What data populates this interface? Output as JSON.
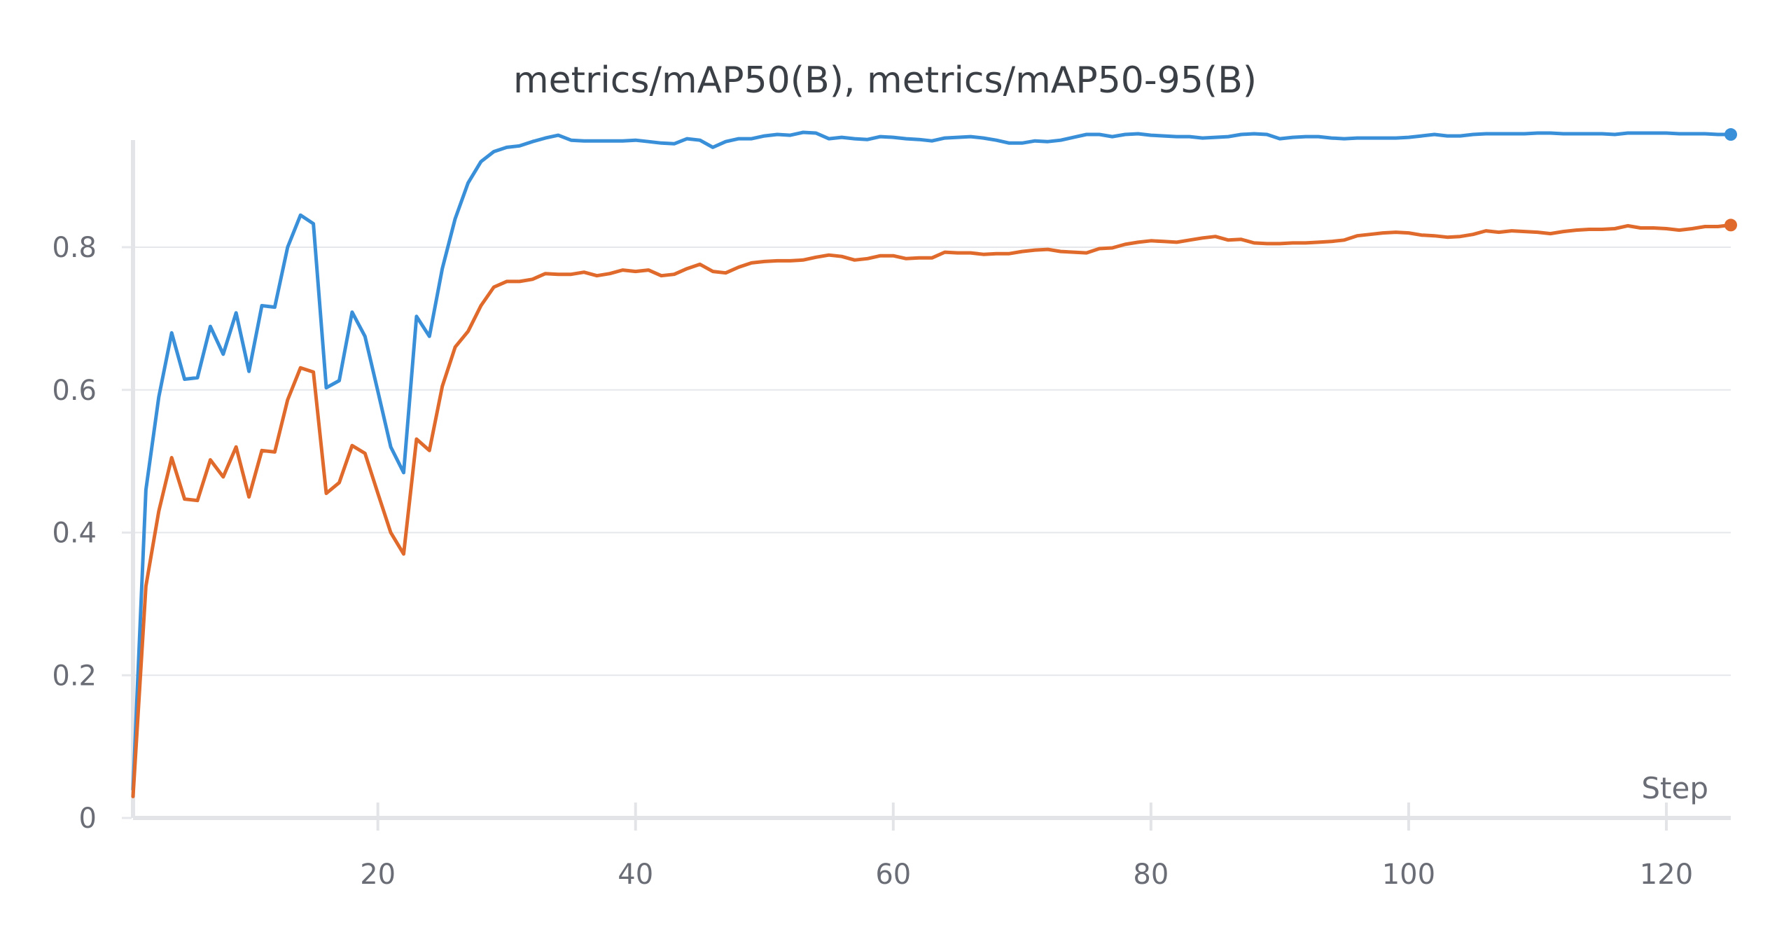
{
  "chart_data": {
    "type": "line",
    "title": "metrics/mAP50(B), metrics/mAP50-95(B)",
    "xlabel": "Step",
    "ylabel": "",
    "xlim": [
      1,
      125
    ],
    "ylim": [
      0,
      0.96
    ],
    "x_ticks": [
      20,
      40,
      60,
      80,
      100,
      120
    ],
    "y_ticks": [
      0,
      0.2,
      0.4,
      0.6,
      0.8
    ],
    "y_tick_labels": [
      "0",
      "0.2",
      "0.4",
      "0.6",
      "0.8"
    ],
    "x_tick_labels": [
      "20",
      "40",
      "60",
      "80",
      "100",
      "120"
    ],
    "grid": true,
    "legend": "none",
    "series": [
      {
        "color": "#3a8fd9",
        "x": [
          1,
          2,
          3,
          4,
          5,
          6,
          7,
          8,
          9,
          10,
          11,
          12,
          13,
          14,
          15,
          16,
          17,
          18,
          19,
          20,
          21,
          22,
          23,
          24,
          25,
          26,
          27,
          28,
          29,
          30,
          31,
          32,
          33,
          34,
          35,
          36,
          37,
          38,
          39,
          40,
          41,
          42,
          43,
          44,
          45,
          46,
          47,
          48,
          49,
          50,
          51,
          52,
          53,
          54,
          55,
          56,
          57,
          58,
          59,
          60,
          61,
          62,
          63,
          64,
          65,
          66,
          67,
          68,
          69,
          70,
          71,
          72,
          73,
          74,
          75,
          76,
          77,
          78,
          79,
          80,
          81,
          82,
          83,
          84,
          85,
          86,
          87,
          88,
          89,
          90,
          91,
          92,
          93,
          94,
          95,
          96,
          97,
          98,
          99,
          100,
          101,
          102,
          103,
          104,
          105,
          106,
          107,
          108,
          109,
          110,
          111,
          112,
          113,
          114,
          115,
          116,
          117,
          118,
          119,
          120,
          121,
          122,
          123,
          124,
          125
        ],
        "values": [
          0.04,
          0.46,
          0.59,
          0.68,
          0.615,
          0.617,
          0.689,
          0.65,
          0.708,
          0.626,
          0.718,
          0.716,
          0.8,
          0.845,
          0.833,
          0.603,
          0.613,
          0.709,
          0.675,
          0.598,
          0.52,
          0.484,
          0.703,
          0.675,
          0.77,
          0.84,
          0.89,
          0.92,
          0.934,
          0.94,
          0.942,
          0.948,
          0.953,
          0.957,
          0.95,
          0.949,
          0.949,
          0.949,
          0.949,
          0.95,
          0.948,
          0.946,
          0.945,
          0.952,
          0.95,
          0.94,
          0.948,
          0.952,
          0.952,
          0.956,
          0.958,
          0.957,
          0.961,
          0.96,
          0.952,
          0.954,
          0.952,
          0.951,
          0.955,
          0.954,
          0.952,
          0.951,
          0.949,
          0.953,
          0.954,
          0.955,
          0.953,
          0.95,
          0.946,
          0.946,
          0.949,
          0.948,
          0.95,
          0.954,
          0.958,
          0.958,
          0.955,
          0.958,
          0.959,
          0.957,
          0.956,
          0.955,
          0.955,
          0.953,
          0.954,
          0.955,
          0.958,
          0.959,
          0.958,
          0.952,
          0.954,
          0.955,
          0.955,
          0.953,
          0.952,
          0.953,
          0.953,
          0.953,
          0.953,
          0.954,
          0.956,
          0.958,
          0.956,
          0.956,
          0.958,
          0.959,
          0.959,
          0.959,
          0.959,
          0.96,
          0.96,
          0.959,
          0.959,
          0.959,
          0.959,
          0.958,
          0.96,
          0.96,
          0.96,
          0.96,
          0.959,
          0.959,
          0.959,
          0.958,
          0.958
        ]
      },
      {
        "color": "#e06a2c",
        "x": [
          1,
          2,
          3,
          4,
          5,
          6,
          7,
          8,
          9,
          10,
          11,
          12,
          13,
          14,
          15,
          16,
          17,
          18,
          19,
          20,
          21,
          22,
          23,
          24,
          25,
          26,
          27,
          28,
          29,
          30,
          31,
          32,
          33,
          34,
          35,
          36,
          37,
          38,
          39,
          40,
          41,
          42,
          43,
          44,
          45,
          46,
          47,
          48,
          49,
          50,
          51,
          52,
          53,
          54,
          55,
          56,
          57,
          58,
          59,
          60,
          61,
          62,
          63,
          64,
          65,
          66,
          67,
          68,
          69,
          70,
          71,
          72,
          73,
          74,
          75,
          76,
          77,
          78,
          79,
          80,
          81,
          82,
          83,
          84,
          85,
          86,
          87,
          88,
          89,
          90,
          91,
          92,
          93,
          94,
          95,
          96,
          97,
          98,
          99,
          100,
          101,
          102,
          103,
          104,
          105,
          106,
          107,
          108,
          109,
          110,
          111,
          112,
          113,
          114,
          115,
          116,
          117,
          118,
          119,
          120,
          121,
          122,
          123,
          124,
          125
        ],
        "values": [
          0.03,
          0.325,
          0.43,
          0.505,
          0.447,
          0.445,
          0.502,
          0.478,
          0.52,
          0.45,
          0.515,
          0.513,
          0.586,
          0.631,
          0.625,
          0.455,
          0.47,
          0.522,
          0.511,
          0.455,
          0.4,
          0.37,
          0.531,
          0.515,
          0.605,
          0.66,
          0.682,
          0.718,
          0.744,
          0.752,
          0.752,
          0.755,
          0.763,
          0.762,
          0.762,
          0.765,
          0.76,
          0.763,
          0.768,
          0.766,
          0.768,
          0.76,
          0.762,
          0.77,
          0.776,
          0.766,
          0.764,
          0.772,
          0.778,
          0.78,
          0.781,
          0.781,
          0.782,
          0.786,
          0.789,
          0.787,
          0.782,
          0.784,
          0.788,
          0.788,
          0.784,
          0.785,
          0.785,
          0.793,
          0.792,
          0.792,
          0.79,
          0.791,
          0.791,
          0.794,
          0.796,
          0.797,
          0.794,
          0.793,
          0.792,
          0.798,
          0.799,
          0.804,
          0.807,
          0.809,
          0.808,
          0.807,
          0.81,
          0.813,
          0.815,
          0.81,
          0.811,
          0.806,
          0.805,
          0.805,
          0.806,
          0.806,
          0.807,
          0.808,
          0.81,
          0.816,
          0.818,
          0.82,
          0.821,
          0.82,
          0.817,
          0.816,
          0.814,
          0.815,
          0.818,
          0.823,
          0.821,
          0.823,
          0.822,
          0.821,
          0.819,
          0.822,
          0.824,
          0.825,
          0.825,
          0.826,
          0.83,
          0.827,
          0.827,
          0.826,
          0.824,
          0.826,
          0.829,
          0.829,
          0.831
        ]
      }
    ]
  }
}
